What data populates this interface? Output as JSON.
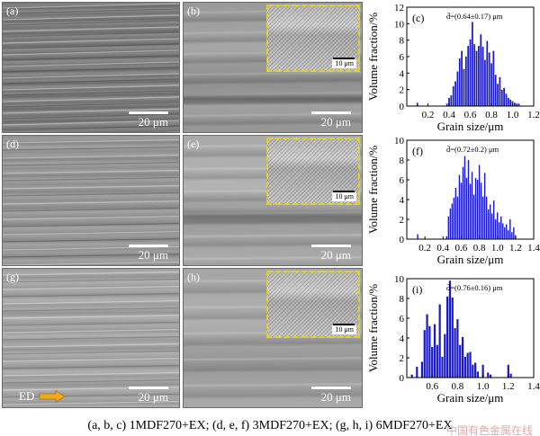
{
  "panels": {
    "a": {
      "letter": "(a)",
      "scale": "20 μm"
    },
    "b": {
      "letter": "(b)",
      "scale": "20 μm",
      "inset_scale": "10 μm"
    },
    "d": {
      "letter": "(d)",
      "scale": "20 μm"
    },
    "e": {
      "letter": "(e)",
      "scale": "20 μm",
      "inset_scale": "10 μm"
    },
    "g": {
      "letter": "(g)",
      "scale": "20 μm",
      "ed_label": "ED"
    },
    "h": {
      "letter": "(h)",
      "scale": "20 μm",
      "inset_scale": "10 μm"
    }
  },
  "colors": {
    "bar": "#1a1acc",
    "inset_border": "#e6d21a",
    "ed_arrow": "#f0a81c"
  },
  "chart_data": [
    {
      "type": "bar",
      "panel_label": "(c)",
      "annotation": "d̄=(0.64±0.17) μm",
      "xlabel": "Grain size/μm",
      "ylabel": "Volume fraction/%",
      "xlim": [
        0.0,
        1.2
      ],
      "ylim": [
        0,
        12
      ],
      "xticks": [
        0.2,
        0.4,
        0.6,
        0.8,
        1.0,
        1.2
      ],
      "xtick_labels": [
        "0.2",
        "0.4",
        "0.6",
        "0.8",
        "1.0",
        "1.2"
      ],
      "yticks": [
        0,
        2,
        4,
        6,
        8,
        10,
        12
      ],
      "ytick_labels": [
        "0",
        "2",
        "4",
        "6",
        "8",
        "10",
        "12"
      ],
      "bin_width": 0.02,
      "x": [
        0.1,
        0.38,
        0.4,
        0.42,
        0.44,
        0.46,
        0.48,
        0.5,
        0.52,
        0.54,
        0.56,
        0.58,
        0.6,
        0.62,
        0.64,
        0.66,
        0.68,
        0.7,
        0.72,
        0.74,
        0.76,
        0.78,
        0.8,
        0.82,
        0.84,
        0.86,
        0.88,
        0.9,
        0.92,
        0.94,
        0.96,
        0.98,
        1.0,
        1.02,
        1.04,
        1.06
      ],
      "values": [
        0.4,
        0.3,
        1.0,
        1.3,
        2.4,
        3.0,
        4.2,
        5.8,
        6.7,
        4.5,
        6.0,
        7.3,
        8.1,
        10.2,
        7.5,
        6.7,
        7.3,
        8.7,
        7.2,
        5.6,
        7.9,
        6.5,
        5.2,
        6.7,
        3.8,
        2.7,
        3.5,
        2.0,
        2.2,
        1.5,
        1.0,
        0.8,
        0.6,
        0.4,
        0.3,
        0.3
      ]
    },
    {
      "type": "bar",
      "panel_label": "(f)",
      "annotation": "d̄=(0.72±0.2) μm",
      "xlabel": "Grain size/μm",
      "ylabel": "Volume fraction/%",
      "xlim": [
        0.0,
        1.4
      ],
      "ylim": [
        0,
        10
      ],
      "xticks": [
        0.2,
        0.4,
        0.6,
        0.8,
        1.0,
        1.2,
        1.4
      ],
      "xtick_labels": [
        "0.2",
        "0.4",
        "0.6",
        "0.8",
        "1.0",
        "1.2",
        "1.4"
      ],
      "yticks": [
        0,
        2,
        4,
        6,
        8,
        10
      ],
      "ytick_labels": [
        "0",
        "2",
        "4",
        "6",
        "8",
        "10"
      ],
      "bin_width": 0.02,
      "x": [
        0.12,
        0.44,
        0.46,
        0.48,
        0.5,
        0.52,
        0.54,
        0.56,
        0.58,
        0.6,
        0.62,
        0.64,
        0.66,
        0.68,
        0.7,
        0.72,
        0.74,
        0.76,
        0.78,
        0.8,
        0.82,
        0.84,
        0.86,
        0.88,
        0.9,
        0.92,
        0.94,
        0.96,
        0.98,
        1.0,
        1.02,
        1.04,
        1.06,
        1.08,
        1.1,
        1.12,
        1.14,
        1.16,
        1.18,
        1.2
      ],
      "values": [
        0.5,
        0.3,
        2.3,
        3.1,
        3.6,
        4.2,
        5.2,
        4.3,
        6.5,
        5.7,
        7.3,
        8.4,
        6.2,
        8.0,
        5.6,
        6.8,
        4.5,
        6.2,
        6.0,
        7.5,
        5.7,
        4.3,
        6.7,
        4.3,
        3.0,
        3.5,
        2.6,
        3.9,
        2.0,
        2.7,
        1.7,
        2.3,
        1.6,
        1.2,
        1.5,
        0.9,
        2.0,
        0.7,
        1.2,
        0.4
      ]
    },
    {
      "type": "bar",
      "panel_label": "(i)",
      "annotation": "d̄=(0.76±0.16) μm",
      "xlabel": "Grain size/μm",
      "ylabel": "Volume fraction/%",
      "xlim": [
        0.4,
        1.4
      ],
      "ylim": [
        0,
        10
      ],
      "xticks": [
        0.6,
        0.8,
        1.0,
        1.2,
        1.4
      ],
      "xtick_labels": [
        "0.6",
        "0.8",
        "1.0",
        "1.2",
        "1.4"
      ],
      "yticks": [
        0,
        2,
        4,
        6,
        8,
        10
      ],
      "ytick_labels": [
        "0",
        "2",
        "4",
        "6",
        "8",
        "10"
      ],
      "bin_width": 0.02,
      "x": [
        0.44,
        0.48,
        0.52,
        0.54,
        0.56,
        0.58,
        0.6,
        0.62,
        0.64,
        0.66,
        0.68,
        0.7,
        0.72,
        0.74,
        0.76,
        0.78,
        0.8,
        0.82,
        0.84,
        0.86,
        0.88,
        0.9,
        0.92,
        0.94,
        0.96,
        1.0,
        1.04,
        1.06,
        1.2,
        1.22
      ],
      "values": [
        0.3,
        1.1,
        1.6,
        4.8,
        6.4,
        5.2,
        3.1,
        5.4,
        3.3,
        7.4,
        2.1,
        4.4,
        8.2,
        9.8,
        8.1,
        5.0,
        5.9,
        3.3,
        4.1,
        2.1,
        2.5,
        2.6,
        1.3,
        1.5,
        0.6,
        1.3,
        0.5,
        0.3,
        1.3,
        0.4
      ]
    }
  ],
  "caption": "(a, b, c) 1MDF270+EX; (d, e, f) 3MDF270+EX; (g, h, i) 6MDF270+EX",
  "watermark": "中国有色金属在线"
}
